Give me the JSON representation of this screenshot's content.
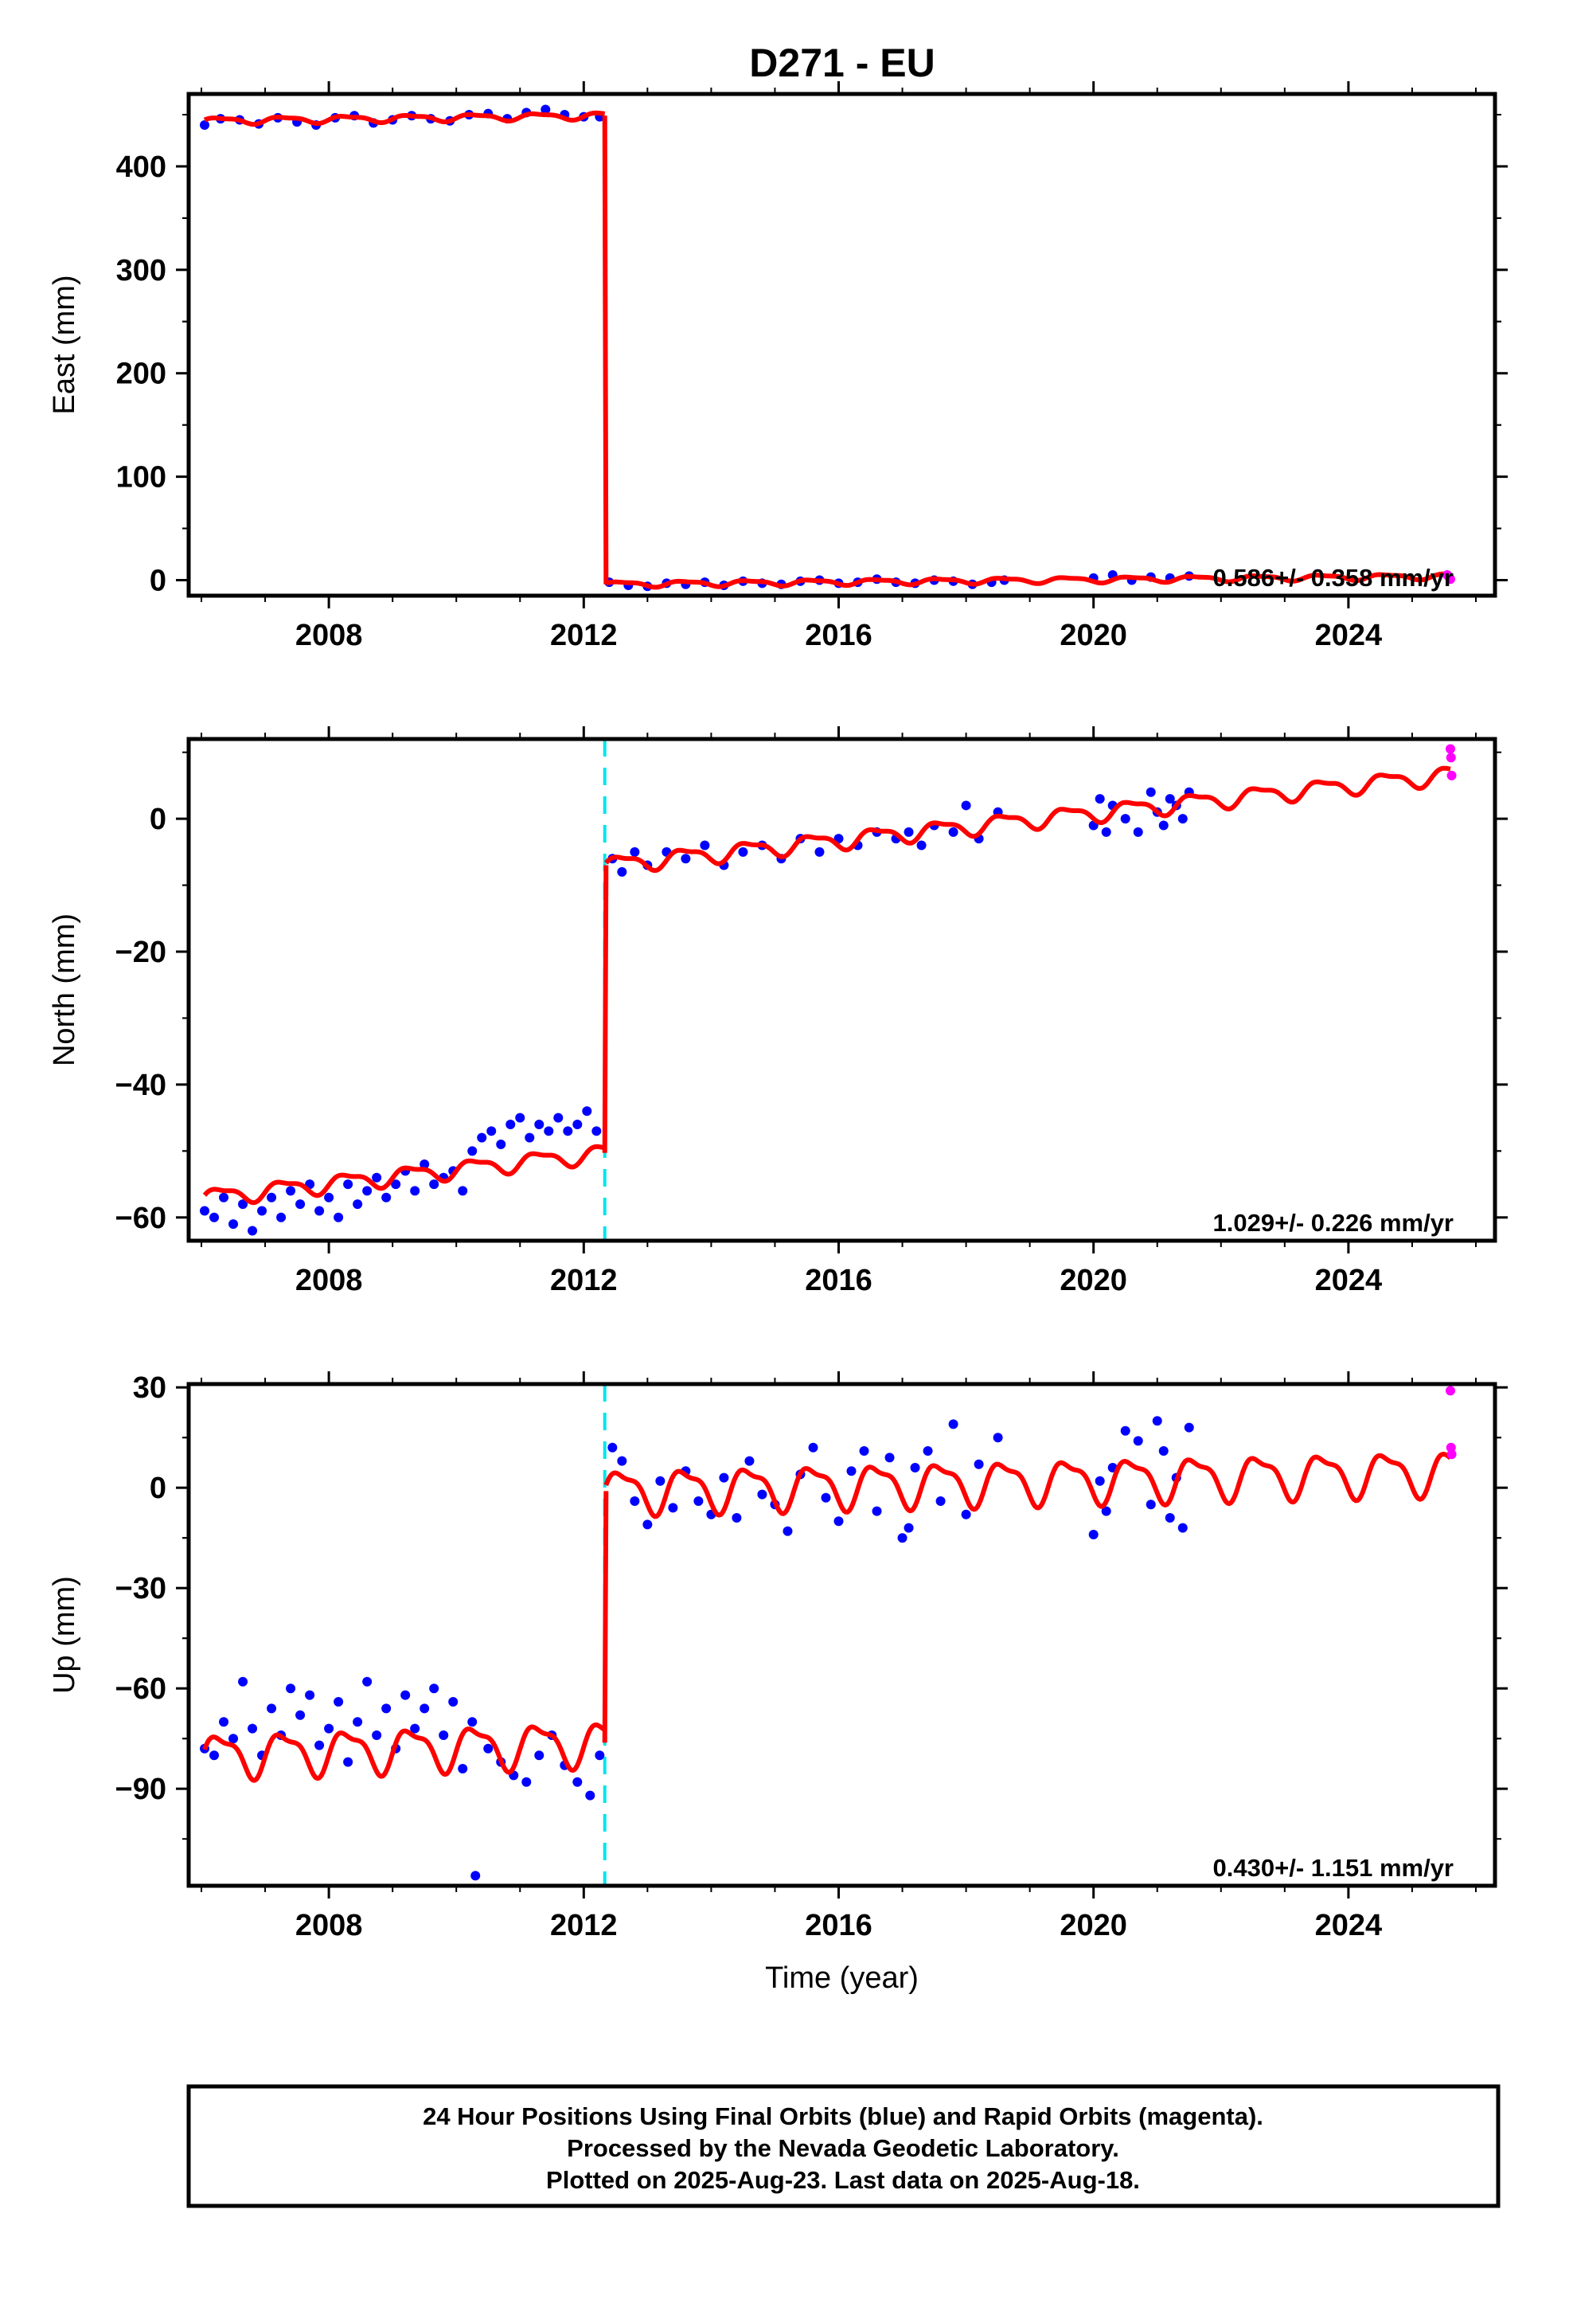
{
  "figure": {
    "title": "D271 - EU",
    "footer": {
      "lines": [
        "24 Hour Positions Using Final Orbits (blue) and Rapid Orbits (magenta).",
        "Processed by the Nevada Geodetic Laboratory.",
        "Plotted on 2025-Aug-23. Last data on 2025-Aug-18."
      ]
    },
    "colors": {
      "final_orbits": "#0000ff",
      "rapid_orbits": "#ff00ff",
      "model_fit": "#ff0000",
      "offset_marker": "#00e5ee"
    }
  },
  "chart_data": [
    {
      "type": "scatter",
      "panel": "east",
      "ylabel": "East (mm)",
      "xlabel": "",
      "xlim": [
        2005.8,
        2026.3
      ],
      "ylim": [
        -15,
        470
      ],
      "xticks": [
        2008,
        2012,
        2016,
        2020,
        2024
      ],
      "yticks": [
        0,
        100,
        200,
        300,
        400
      ],
      "rate_annotation": "0.586+/- 0.358 mm/yr",
      "offset_epoch": 2012.33,
      "offset_marker_visible": false,
      "series": [
        {
          "role": "final",
          "segments": [
            {
              "x": [
                2006.05,
                2006.3,
                2006.6,
                2006.9,
                2007.2,
                2007.5,
                2007.8,
                2008.1,
                2008.4,
                2008.7,
                2009.0,
                2009.3,
                2009.6,
                2009.9,
                2010.2,
                2010.5,
                2010.8,
                2011.1,
                2011.4,
                2011.7,
                2012.0,
                2012.25
              ],
              "y": [
                440,
                446,
                445,
                441,
                447,
                443,
                440,
                447,
                449,
                442,
                445,
                449,
                446,
                444,
                450,
                451,
                446,
                452,
                455,
                450,
                448,
                448
              ]
            },
            {
              "x": [
                2012.4,
                2012.7,
                2013.0,
                2013.3,
                2013.6,
                2013.9,
                2014.2,
                2014.5,
                2014.8,
                2015.1,
                2015.4,
                2015.7,
                2016.0,
                2016.3,
                2016.6,
                2016.9,
                2017.2,
                2017.5,
                2017.8,
                2018.1,
                2018.4,
                2018.6,
                2020.0,
                2020.3,
                2020.6,
                2020.9,
                2021.2,
                2021.5
              ],
              "y": [
                -2,
                -5,
                -6,
                -3,
                -4,
                -2,
                -5,
                -1,
                -3,
                -4,
                -1,
                0,
                -3,
                -2,
                1,
                -2,
                -3,
                0,
                -1,
                -4,
                -2,
                0,
                2,
                5,
                0,
                3,
                2,
                4
              ]
            }
          ]
        },
        {
          "role": "rapid",
          "x": [
            2025.55,
            2025.58,
            2025.6
          ],
          "y": [
            5,
            3,
            1
          ]
        }
      ],
      "model": {
        "breaks": [
          {
            "t0": 2006.05,
            "t1": 2012.33,
            "a": 444,
            "v": 0.8,
            "amp": 3
          },
          {
            "t0": 2012.35,
            "t1": 2025.6,
            "a": -4,
            "v": 0.586,
            "amp": 2.5
          }
        ]
      }
    },
    {
      "type": "scatter",
      "panel": "north",
      "ylabel": "North (mm)",
      "xlabel": "",
      "xlim": [
        2005.8,
        2026.3
      ],
      "ylim": [
        -63.5,
        12
      ],
      "xticks": [
        2008,
        2012,
        2016,
        2020,
        2024
      ],
      "yticks": [
        -60,
        -40,
        -20,
        0
      ],
      "rate_annotation": "1.029+/- 0.226 mm/yr",
      "offset_epoch": 2012.33,
      "offset_marker_visible": true,
      "series": [
        {
          "role": "final",
          "segments": [
            {
              "x": [
                2006.05,
                2006.2,
                2006.35,
                2006.5,
                2006.65,
                2006.8,
                2006.95,
                2007.1,
                2007.25,
                2007.4,
                2007.55,
                2007.7,
                2007.85,
                2008.0,
                2008.15,
                2008.3,
                2008.45,
                2008.6,
                2008.75,
                2008.9,
                2009.05,
                2009.2,
                2009.35,
                2009.5,
                2009.65,
                2009.8,
                2009.95,
                2010.1,
                2010.25,
                2010.4,
                2010.55,
                2010.7,
                2010.85,
                2011.0,
                2011.15,
                2011.3,
                2011.45,
                2011.6,
                2011.75,
                2011.9,
                2012.05,
                2012.2
              ],
              "y": [
                -59,
                -60,
                -57,
                -61,
                -58,
                -62,
                -59,
                -57,
                -60,
                -56,
                -58,
                -55,
                -59,
                -57,
                -60,
                -55,
                -58,
                -56,
                -54,
                -57,
                -55,
                -53,
                -56,
                -52,
                -55,
                -54,
                -53,
                -56,
                -50,
                -48,
                -47,
                -49,
                -46,
                -45,
                -48,
                -46,
                -47,
                -45,
                -47,
                -46,
                -44,
                -47
              ]
            },
            {
              "x": [
                2012.45,
                2012.6,
                2012.8,
                2013.0,
                2013.3,
                2013.6,
                2013.9,
                2014.2,
                2014.5,
                2014.8,
                2015.1,
                2015.4,
                2015.7,
                2016.0,
                2016.3,
                2016.6,
                2016.9,
                2017.1,
                2017.3,
                2017.5,
                2017.8,
                2018.0,
                2018.2,
                2018.5,
                2020.0,
                2020.1,
                2020.2,
                2020.3,
                2020.5,
                2020.7,
                2020.9,
                2021.0,
                2021.1,
                2021.2,
                2021.3,
                2021.4,
                2021.5
              ],
              "y": [
                -6,
                -8,
                -5,
                -7,
                -5,
                -6,
                -4,
                -7,
                -5,
                -4,
                -6,
                -3,
                -5,
                -3,
                -4,
                -2,
                -3,
                -2,
                -4,
                -1,
                -2,
                2,
                -3,
                1,
                -1,
                3,
                -2,
                2,
                0,
                -2,
                4,
                1,
                -1,
                3,
                2,
                0,
                4
              ]
            }
          ]
        },
        {
          "role": "rapid",
          "x": [
            2025.6,
            2025.61,
            2025.62
          ],
          "y": [
            10.5,
            9.2,
            6.5
          ]
        }
      ],
      "model": {
        "breaks": [
          {
            "t0": 2006.05,
            "t1": 2012.33,
            "a": -57,
            "v": 1.07,
            "amp": 1.2
          },
          {
            "t0": 2012.35,
            "t1": 2025.6,
            "a": -7,
            "v": 1.029,
            "amp": 1.2
          }
        ]
      }
    },
    {
      "type": "scatter",
      "panel": "up",
      "ylabel": "Up (mm)",
      "xlabel": "Time (year)",
      "xlim": [
        2005.8,
        2026.3
      ],
      "ylim": [
        -119,
        31
      ],
      "xticks": [
        2008,
        2012,
        2016,
        2020,
        2024
      ],
      "yticks": [
        -90,
        -60,
        -30,
        0,
        30
      ],
      "rate_annotation": "0.430+/- 1.151 mm/yr",
      "offset_epoch": 2012.33,
      "offset_marker_visible": true,
      "series": [
        {
          "role": "final",
          "segments": [
            {
              "x": [
                2006.05,
                2006.2,
                2006.35,
                2006.5,
                2006.65,
                2006.8,
                2006.95,
                2007.1,
                2007.25,
                2007.4,
                2007.55,
                2007.7,
                2007.85,
                2008.0,
                2008.15,
                2008.3,
                2008.45,
                2008.6,
                2008.75,
                2008.9,
                2009.05,
                2009.2,
                2009.35,
                2009.5,
                2009.65,
                2009.8,
                2009.95,
                2010.1,
                2010.25,
                2010.3,
                2010.5,
                2010.7,
                2010.9,
                2011.1,
                2011.3,
                2011.5,
                2011.7,
                2011.9,
                2012.1,
                2012.25
              ],
              "y": [
                -78,
                -80,
                -70,
                -75,
                -58,
                -72,
                -80,
                -66,
                -74,
                -60,
                -68,
                -62,
                -77,
                -72,
                -64,
                -82,
                -70,
                -58,
                -74,
                -66,
                -78,
                -62,
                -72,
                -66,
                -60,
                -74,
                -64,
                -84,
                -70,
                -116,
                -78,
                -82,
                -86,
                -88,
                -80,
                -74,
                -83,
                -88,
                -92,
                -80
              ]
            },
            {
              "x": [
                2012.45,
                2012.6,
                2012.8,
                2013.0,
                2013.2,
                2013.4,
                2013.6,
                2013.8,
                2014.0,
                2014.2,
                2014.4,
                2014.6,
                2014.8,
                2015.0,
                2015.2,
                2015.4,
                2015.6,
                2015.8,
                2016.0,
                2016.2,
                2016.4,
                2016.6,
                2016.8,
                2017.0,
                2017.1,
                2017.2,
                2017.4,
                2017.6,
                2017.8,
                2018.0,
                2018.2,
                2018.5,
                2020.0,
                2020.1,
                2020.2,
                2020.3,
                2020.5,
                2020.7,
                2020.9,
                2021.0,
                2021.1,
                2021.2,
                2021.3,
                2021.4,
                2021.5
              ],
              "y": [
                12,
                8,
                -4,
                -11,
                2,
                -6,
                5,
                -4,
                -8,
                3,
                -9,
                8,
                -2,
                -5,
                -13,
                4,
                12,
                -3,
                -10,
                5,
                11,
                -7,
                9,
                -15,
                -12,
                6,
                11,
                -4,
                19,
                -8,
                7,
                15,
                -14,
                2,
                -7,
                6,
                17,
                14,
                -5,
                20,
                11,
                -9,
                3,
                -12,
                18
              ]
            }
          ]
        },
        {
          "role": "rapid",
          "x": [
            2025.6,
            2025.61,
            2025.62
          ],
          "y": [
            29,
            12,
            10
          ]
        }
      ],
      "model": {
        "breaks": [
          {
            "t0": 2006.05,
            "t1": 2012.33,
            "a": -80,
            "v": 0.6,
            "amp": 6
          },
          {
            "t0": 2012.35,
            "t1": 2025.6,
            "a": -1,
            "v": 0.43,
            "amp": 6
          }
        ]
      }
    }
  ]
}
